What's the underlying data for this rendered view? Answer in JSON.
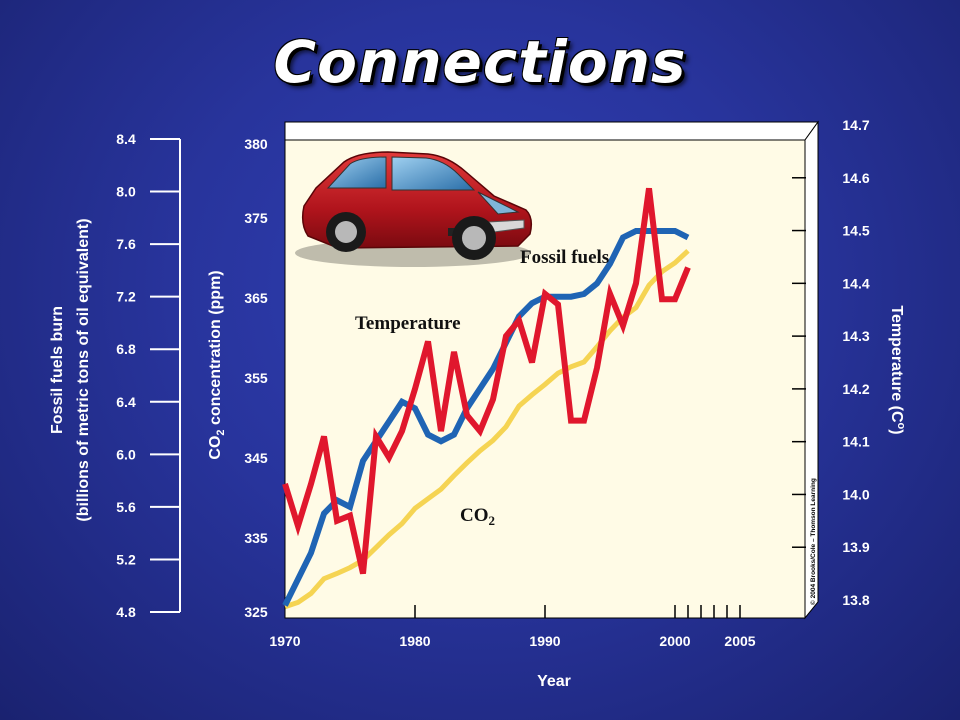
{
  "slide": {
    "title": "Connections"
  },
  "chart_data": {
    "type": "line",
    "x_axis": {
      "title": "Year",
      "ticks": [
        "1970",
        "1980",
        "1990",
        "2000",
        "2005"
      ],
      "range": [
        1970,
        2005
      ]
    },
    "left_axis": {
      "title_line1": "Fossil fuels burn",
      "title_line2": "(billions of metric tons of oil equivalent)",
      "ticks": [
        "8.4",
        "8.0",
        "7.6",
        "7.2",
        "6.8",
        "6.4",
        "6.0",
        "5.6",
        "5.2",
        "4.8"
      ],
      "range": [
        4.8,
        8.4
      ]
    },
    "co2_axis": {
      "title_prefix": "CO",
      "title_sub": "2",
      "title_suffix": " concentration (ppm)",
      "ticks": [
        "380",
        "375",
        "365",
        "355",
        "345",
        "335",
        "325"
      ],
      "tick_values": [
        380,
        375,
        365,
        355,
        345,
        335,
        325
      ]
    },
    "right_axis": {
      "title": "Temperature (C",
      "title_sup": "o",
      "title_end": ")",
      "ticks": [
        "14.7",
        "14.6",
        "14.5",
        "14.4",
        "14.3",
        "14.2",
        "14.1",
        "14.0",
        "13.9",
        "13.8"
      ],
      "tick_values": [
        14.7,
        14.6,
        14.5,
        14.4,
        14.3,
        14.2,
        14.1,
        14.0,
        13.9,
        13.8
      ]
    },
    "annotations": {
      "fossil_fuels": "Fossil fuels",
      "temperature": "Temperature",
      "co2_prefix": "CO",
      "co2_sub": "2"
    },
    "credit": "© 2004 Brooks/Cole – Thomson Learning",
    "series": [
      {
        "key": "co2",
        "color": "#f5d453",
        "axis": "co2",
        "x": [
          1970,
          1971,
          1972,
          1973,
          1974,
          1975,
          1976,
          1977,
          1978,
          1979,
          1980,
          1981,
          1982,
          1983,
          1984,
          1985,
          1986,
          1987,
          1988,
          1989,
          1990,
          1991,
          1992,
          1993,
          1994,
          1995,
          1996,
          1997,
          1998,
          1999,
          2000,
          2001
        ],
        "y": [
          325.7,
          326.3,
          327.5,
          329.5,
          330.2,
          331.0,
          332.0,
          333.7,
          335.4,
          336.8,
          338.7,
          339.9,
          341.1,
          342.8,
          344.4,
          345.9,
          347.2,
          348.9,
          351.5,
          352.9,
          354.2,
          355.6,
          356.4,
          357.0,
          358.9,
          360.9,
          362.6,
          363.8,
          366.6,
          368.3,
          369.4,
          370.9
        ]
      },
      {
        "key": "fossil",
        "color": "#1f64b4",
        "axis": "left",
        "x": [
          1970,
          1971,
          1972,
          1973,
          1974,
          1975,
          1976,
          1977,
          1978,
          1979,
          1980,
          1981,
          1982,
          1983,
          1984,
          1985,
          1986,
          1987,
          1988,
          1989,
          1990,
          1991,
          1992,
          1993,
          1994,
          1995,
          1996,
          1997,
          1998,
          1999,
          2000,
          2001
        ],
        "y": [
          4.85,
          5.05,
          5.25,
          5.55,
          5.65,
          5.6,
          5.95,
          6.1,
          6.25,
          6.4,
          6.35,
          6.15,
          6.1,
          6.15,
          6.35,
          6.5,
          6.65,
          6.85,
          7.05,
          7.15,
          7.2,
          7.2,
          7.2,
          7.22,
          7.3,
          7.45,
          7.65,
          7.7,
          7.7,
          7.7,
          7.7,
          7.65
        ]
      },
      {
        "key": "temperature",
        "color": "#e0172d",
        "axis": "right",
        "x": [
          1970,
          1971,
          1972,
          1973,
          1974,
          1975,
          1976,
          1977,
          1978,
          1979,
          1980,
          1981,
          1982,
          1983,
          1984,
          1985,
          1986,
          1987,
          1988,
          1989,
          1990,
          1991,
          1992,
          1993,
          1994,
          1995,
          1996,
          1997,
          1998,
          1999,
          2000,
          2001
        ],
        "y": [
          14.02,
          13.94,
          14.02,
          14.11,
          13.95,
          13.96,
          13.85,
          14.11,
          14.07,
          14.12,
          14.2,
          14.29,
          14.12,
          14.27,
          14.15,
          14.12,
          14.18,
          14.3,
          14.33,
          14.25,
          14.38,
          14.36,
          14.14,
          14.14,
          14.24,
          14.38,
          14.32,
          14.4,
          14.58,
          14.37,
          14.37,
          14.43
        ]
      }
    ],
    "credit_rotated": true,
    "grid": false,
    "legend": "none"
  }
}
